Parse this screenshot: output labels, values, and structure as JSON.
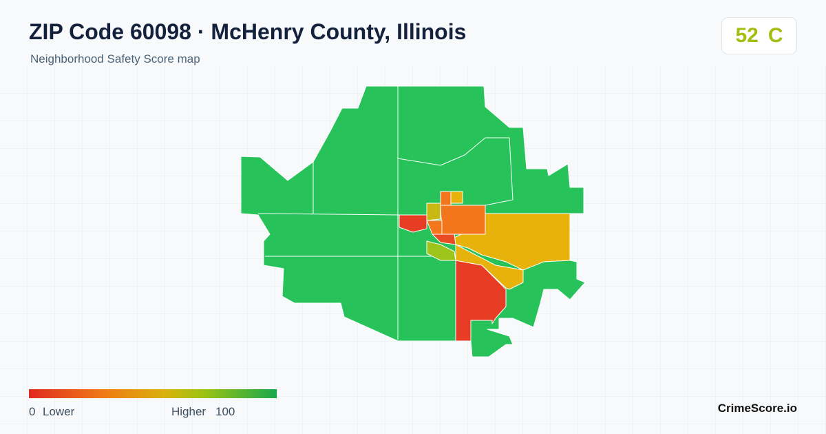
{
  "header": {
    "title": "ZIP Code 60098 · McHenry County, Illinois",
    "subtitle": "Neighborhood Safety Score map"
  },
  "score": {
    "value": 52,
    "grade": "C"
  },
  "legend": {
    "min": 0,
    "min_label": "Lower",
    "max_label": "Higher",
    "max": 100
  },
  "footer": {
    "brand": "CrimeScore.io"
  }
}
